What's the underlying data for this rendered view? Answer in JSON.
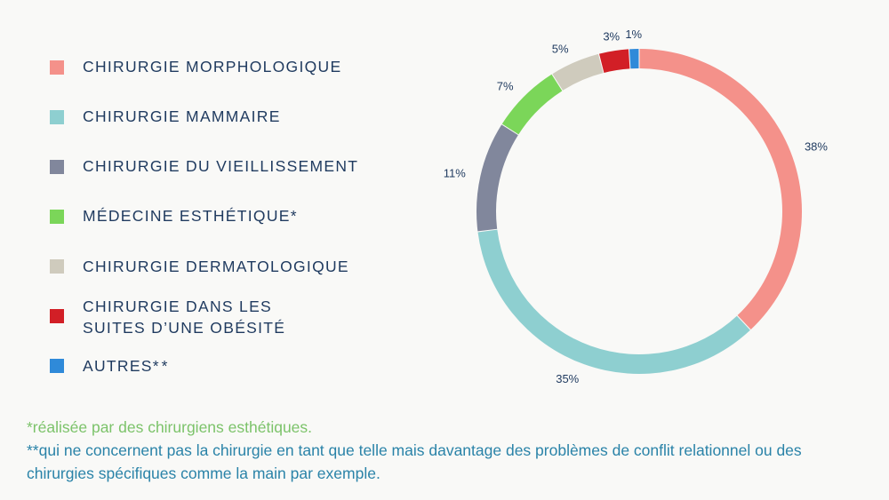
{
  "legend": [
    {
      "label": "CHIRURGIE MORPHOLOGIQUE",
      "mark": "",
      "color": "#f4918a"
    },
    {
      "label": "CHIRURGIE MAMMAIRE",
      "mark": "",
      "color": "#8ecfd0"
    },
    {
      "label": "CHIRURGIE DU VIEILLISSEMENT",
      "mark": "",
      "color": "#81879c"
    },
    {
      "label": "MÉDECINE ESTHÉTIQUE",
      "mark": "*",
      "color": "#7bd659"
    },
    {
      "label": "CHIRURGIE DERMATOLOGIQUE",
      "mark": "",
      "color": "#cfcbbd"
    },
    {
      "label": "CHIRURGIE DANS LES\nSUITES D’UNE OBÉSITÉ",
      "mark": "",
      "color": "#d21f26"
    },
    {
      "label": "AUTRES",
      "mark": "**",
      "color": "#2f8ad9"
    }
  ],
  "chart_data": {
    "type": "pie",
    "donut": true,
    "categories": [
      "CHIRURGIE MORPHOLOGIQUE",
      "CHIRURGIE MAMMAIRE",
      "CHIRURGIE DU VIEILLISSEMENT",
      "MÉDECINE ESTHÉTIQUE",
      "CHIRURGIE DERMATOLOGIQUE",
      "CHIRURGIE DANS LES SUITES D’UNE OBÉSITÉ",
      "AUTRES"
    ],
    "values": [
      38,
      35,
      11,
      7,
      5,
      3,
      1
    ],
    "data_labels": [
      "38%",
      "35%",
      "11%",
      "7%",
      "5%",
      "3%",
      "1%"
    ],
    "colors": [
      "#f4918a",
      "#8ecfd0",
      "#81879c",
      "#7bd659",
      "#cfcbbd",
      "#d21f26",
      "#2f8ad9"
    ],
    "legend_position": "left"
  },
  "footnotes": {
    "note1": "*réalisée par des chirurgiens esthétiques.",
    "note2": "**qui ne concernent pas la chirurgie en tant que telle mais davantage des problèmes de conflit relationnel ou des chirurgies spécifiques comme la main par exemple."
  }
}
